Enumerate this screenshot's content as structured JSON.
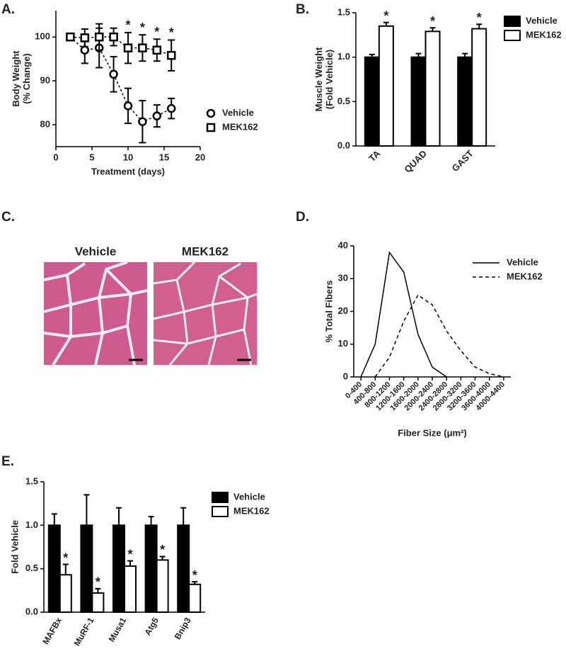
{
  "chart_data": [
    {
      "type": "line",
      "title": "A.",
      "x_label": "Treatment (days)",
      "y_label": [
        "Body Weight",
        "(% Change)"
      ],
      "x": [
        2,
        4,
        6,
        8,
        10,
        12,
        14,
        16
      ],
      "series": [
        {
          "name": "Vehicle",
          "color": "#000000",
          "marker": "circle",
          "style": "dashed",
          "values": [
            100,
            97,
            97.5,
            91.5,
            84.3,
            80.7,
            82,
            83.7
          ],
          "errors": [
            0,
            3,
            4.5,
            4,
            4,
            4.8,
            2.5,
            2.3
          ]
        },
        {
          "name": "MEK162",
          "color": "#000000",
          "marker": "square",
          "style": "dashed",
          "values": [
            100,
            99.8,
            100,
            100,
            97.5,
            97.5,
            97,
            95.8
          ],
          "errors": [
            0,
            2,
            3,
            2,
            3.5,
            3,
            2.5,
            3.5
          ],
          "significance": [
            null,
            null,
            null,
            null,
            "*",
            "*",
            "*",
            "*"
          ]
        }
      ],
      "xlim": [
        0,
        20
      ],
      "xticks": [
        0,
        5,
        10,
        15,
        20
      ],
      "ylim": [
        75,
        106
      ],
      "yticks": [
        80,
        90,
        100
      ],
      "legend": "right"
    },
    {
      "type": "bar",
      "title": "B.",
      "y_label": [
        "Muscle Weight",
        "(Fold Vehicle)"
      ],
      "categories": [
        "TA",
        "QUAD",
        "GAST"
      ],
      "series": [
        {
          "name": "Vehicle",
          "color": "#000000",
          "values": [
            1,
            1,
            1
          ],
          "errors": [
            0.03,
            0.04,
            0.04
          ]
        },
        {
          "name": "MEK162",
          "color": "#ffffff",
          "values": [
            1.35,
            1.29,
            1.32
          ],
          "errors": [
            0.04,
            0.04,
            0.05
          ],
          "significance": [
            "*",
            "*",
            "*"
          ]
        }
      ],
      "ylim": [
        0,
        1.5
      ],
      "yticks": [
        {
          "value": 0,
          "label": "0.0"
        },
        0.5,
        {
          "value": 1,
          "label": "1.0"
        },
        1.5
      ],
      "legend": "right"
    },
    {
      "type": "line",
      "title": "D.",
      "x_label": "Fiber Size (μm²)",
      "y_label": [
        "% Total Fibers"
      ],
      "categories": [
        "0-400",
        "400-800",
        "800-1200",
        "1200-1600",
        "1600-2000",
        "2000-2400",
        "2400-2800",
        "2800-3200",
        "3200-3600",
        "3600-4000",
        "4000-4400"
      ],
      "series": [
        {
          "name": "Vehicle",
          "color": "#000000",
          "style": "solid",
          "values": [
            0,
            10,
            38,
            32,
            13,
            3,
            0,
            null,
            null,
            null,
            null
          ]
        },
        {
          "name": "MEK162",
          "color": "#000000",
          "style": "dashed",
          "values": [
            null,
            0,
            6,
            17,
            25,
            22,
            14,
            8,
            3,
            1,
            0
          ]
        }
      ],
      "ylim": [
        0,
        40
      ],
      "yticks": [
        0,
        10,
        20,
        30,
        40
      ],
      "legend": "upper right"
    },
    {
      "type": "bar",
      "title": "E.",
      "y_label": [
        "Fold Vehicle"
      ],
      "categories": [
        "MAFBx",
        "MuRF-1",
        "Musa1",
        "Atg5",
        "Bnip3"
      ],
      "series": [
        {
          "name": "Vehicle",
          "color": "#000000",
          "values": [
            1,
            1,
            1,
            1,
            1
          ],
          "errors": [
            0.13,
            0.35,
            0.2,
            0.1,
            0.2
          ]
        },
        {
          "name": "MEK162",
          "color": "#ffffff",
          "values": [
            0.43,
            0.22,
            0.53,
            0.6,
            0.32
          ],
          "errors": [
            0.12,
            0.05,
            0.06,
            0.04,
            0.03
          ],
          "significance": [
            "*",
            "*",
            "*",
            "*",
            "*"
          ]
        }
      ],
      "ylim": [
        0,
        1.5
      ],
      "yticks": [
        {
          "value": 0,
          "label": "0.0"
        },
        0.5,
        {
          "value": 1,
          "label": "1.0"
        },
        1.5
      ],
      "legend": "right"
    }
  ],
  "histology": {
    "title": "C.",
    "captions": [
      "Vehicle",
      "MEK162"
    ]
  }
}
